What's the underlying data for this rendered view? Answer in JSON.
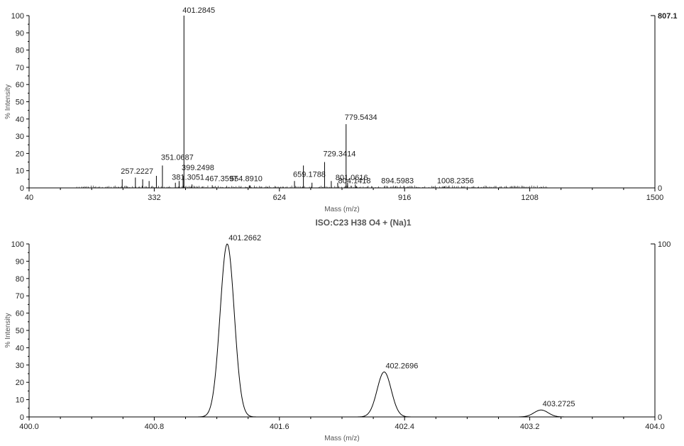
{
  "chart_data": [
    {
      "type": "bar",
      "title": "",
      "xlabel": "Mass (m/z)",
      "ylabel": "% Intensity",
      "xlim": [
        40,
        1500
      ],
      "ylim": [
        0,
        100
      ],
      "xticks": [
        "40",
        "332",
        "624",
        "916",
        "1208",
        "1500"
      ],
      "yticks": [
        "0",
        "10",
        "20",
        "30",
        "40",
        "50",
        "60",
        "70",
        "80",
        "90",
        "100"
      ],
      "right_axis": {
        "max_label": "807.1",
        "min_label": "0"
      },
      "peaks": [
        {
          "x": 257.2227,
          "y": 5,
          "label": "257.2227"
        },
        {
          "x": 288.0,
          "y": 6,
          "label": ""
        },
        {
          "x": 305.0,
          "y": 5,
          "label": ""
        },
        {
          "x": 320.0,
          "y": 4,
          "label": ""
        },
        {
          "x": 337.0,
          "y": 7,
          "label": ""
        },
        {
          "x": 351.0687,
          "y": 13,
          "label": "351.0687"
        },
        {
          "x": 381.3051,
          "y": 3,
          "label": "381.3051"
        },
        {
          "x": 390.0,
          "y": 4,
          "label": ""
        },
        {
          "x": 399.2498,
          "y": 7,
          "label": "399.2498"
        },
        {
          "x": 401.2845,
          "y": 100,
          "label": "401.2845"
        },
        {
          "x": 420.0,
          "y": 2,
          "label": ""
        },
        {
          "x": 467.3597,
          "y": 1.5,
          "label": "467.3597"
        },
        {
          "x": 554.891,
          "y": 1.5,
          "label": "554.8910"
        },
        {
          "x": 659.1788,
          "y": 4,
          "label": "659.1788"
        },
        {
          "x": 680.0,
          "y": 13,
          "label": ""
        },
        {
          "x": 700.0,
          "y": 3,
          "label": ""
        },
        {
          "x": 729.3414,
          "y": 15,
          "label": "729.3414"
        },
        {
          "x": 745.0,
          "y": 4,
          "label": ""
        },
        {
          "x": 760.0,
          "y": 3,
          "label": ""
        },
        {
          "x": 779.5434,
          "y": 37,
          "label": "779.5434"
        },
        {
          "x": 783.0,
          "y": 3,
          "label": ""
        },
        {
          "x": 801.0616,
          "y": 2,
          "label": "801.0616"
        },
        {
          "x": 804.1418,
          "y": 1,
          "label": "804.1418"
        },
        {
          "x": 894.5983,
          "y": 1,
          "label": "894.5983"
        },
        {
          "x": 1008.2356,
          "y": 1,
          "label": "1008.2356"
        }
      ]
    },
    {
      "type": "line",
      "title": "ISO:C23 H38 O4 + (Na)1",
      "xlabel": "Mass (m/z)",
      "ylabel": "% Intensity",
      "xlim": [
        400.0,
        404.0
      ],
      "ylim": [
        0,
        100
      ],
      "xticks": [
        "400.0",
        "400.8",
        "401.6",
        "402.4",
        "403.2",
        "404.0"
      ],
      "yticks": [
        "0",
        "10",
        "20",
        "30",
        "40",
        "50",
        "60",
        "70",
        "80",
        "90",
        "100"
      ],
      "right_axis": {
        "max_label": "100",
        "min_label": "0"
      },
      "peaks": [
        {
          "x": 401.2662,
          "y": 100,
          "label": "401.2662"
        },
        {
          "x": 402.2696,
          "y": 26,
          "label": "402.2696"
        },
        {
          "x": 403.2725,
          "y": 4,
          "label": "403.2725"
        }
      ]
    }
  ]
}
